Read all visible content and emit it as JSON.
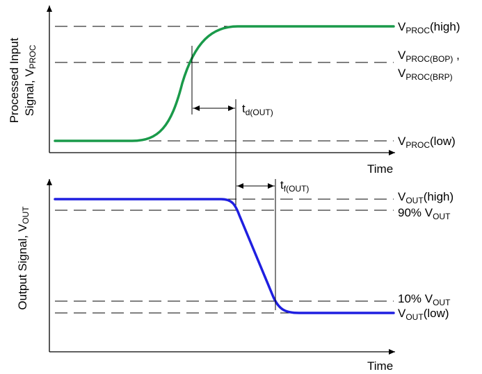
{
  "colors": {
    "input_signal": "#1a9a4a",
    "output_signal": "#1f1fe0",
    "lines": "#000000"
  },
  "top": {
    "ylabel_line1": "Processed Input",
    "ylabel_line2_main": "Signal, V",
    "ylabel_line2_sub": "PROC",
    "xlabel": "Time",
    "levels": {
      "high": {
        "main": "V",
        "sub": "PROC",
        "tail": "(high)"
      },
      "bop": {
        "main": "V",
        "sub": "PROC(BOP)",
        "tail": " ,"
      },
      "brp": {
        "main": "V",
        "sub": "PROC(BRP)",
        "tail": ""
      },
      "low": {
        "main": "V",
        "sub": "PROC",
        "tail": "(low)"
      }
    },
    "delay": {
      "main": "t",
      "sub": "d(OUT)"
    }
  },
  "bottom": {
    "ylabel_main": "Output Signal, V",
    "ylabel_sub": "OUT",
    "xlabel": "Time",
    "levels": {
      "high": {
        "main": "V",
        "sub": "OUT",
        "tail": "(high)"
      },
      "p90": {
        "main": "90% V",
        "sub": "OUT",
        "tail": ""
      },
      "p10": {
        "main": "10% V",
        "sub": "OUT",
        "tail": ""
      },
      "low": {
        "main": "V",
        "sub": "OUT",
        "tail": "(low)"
      }
    },
    "fall": {
      "main": "t",
      "sub": "f(OUT)"
    }
  }
}
